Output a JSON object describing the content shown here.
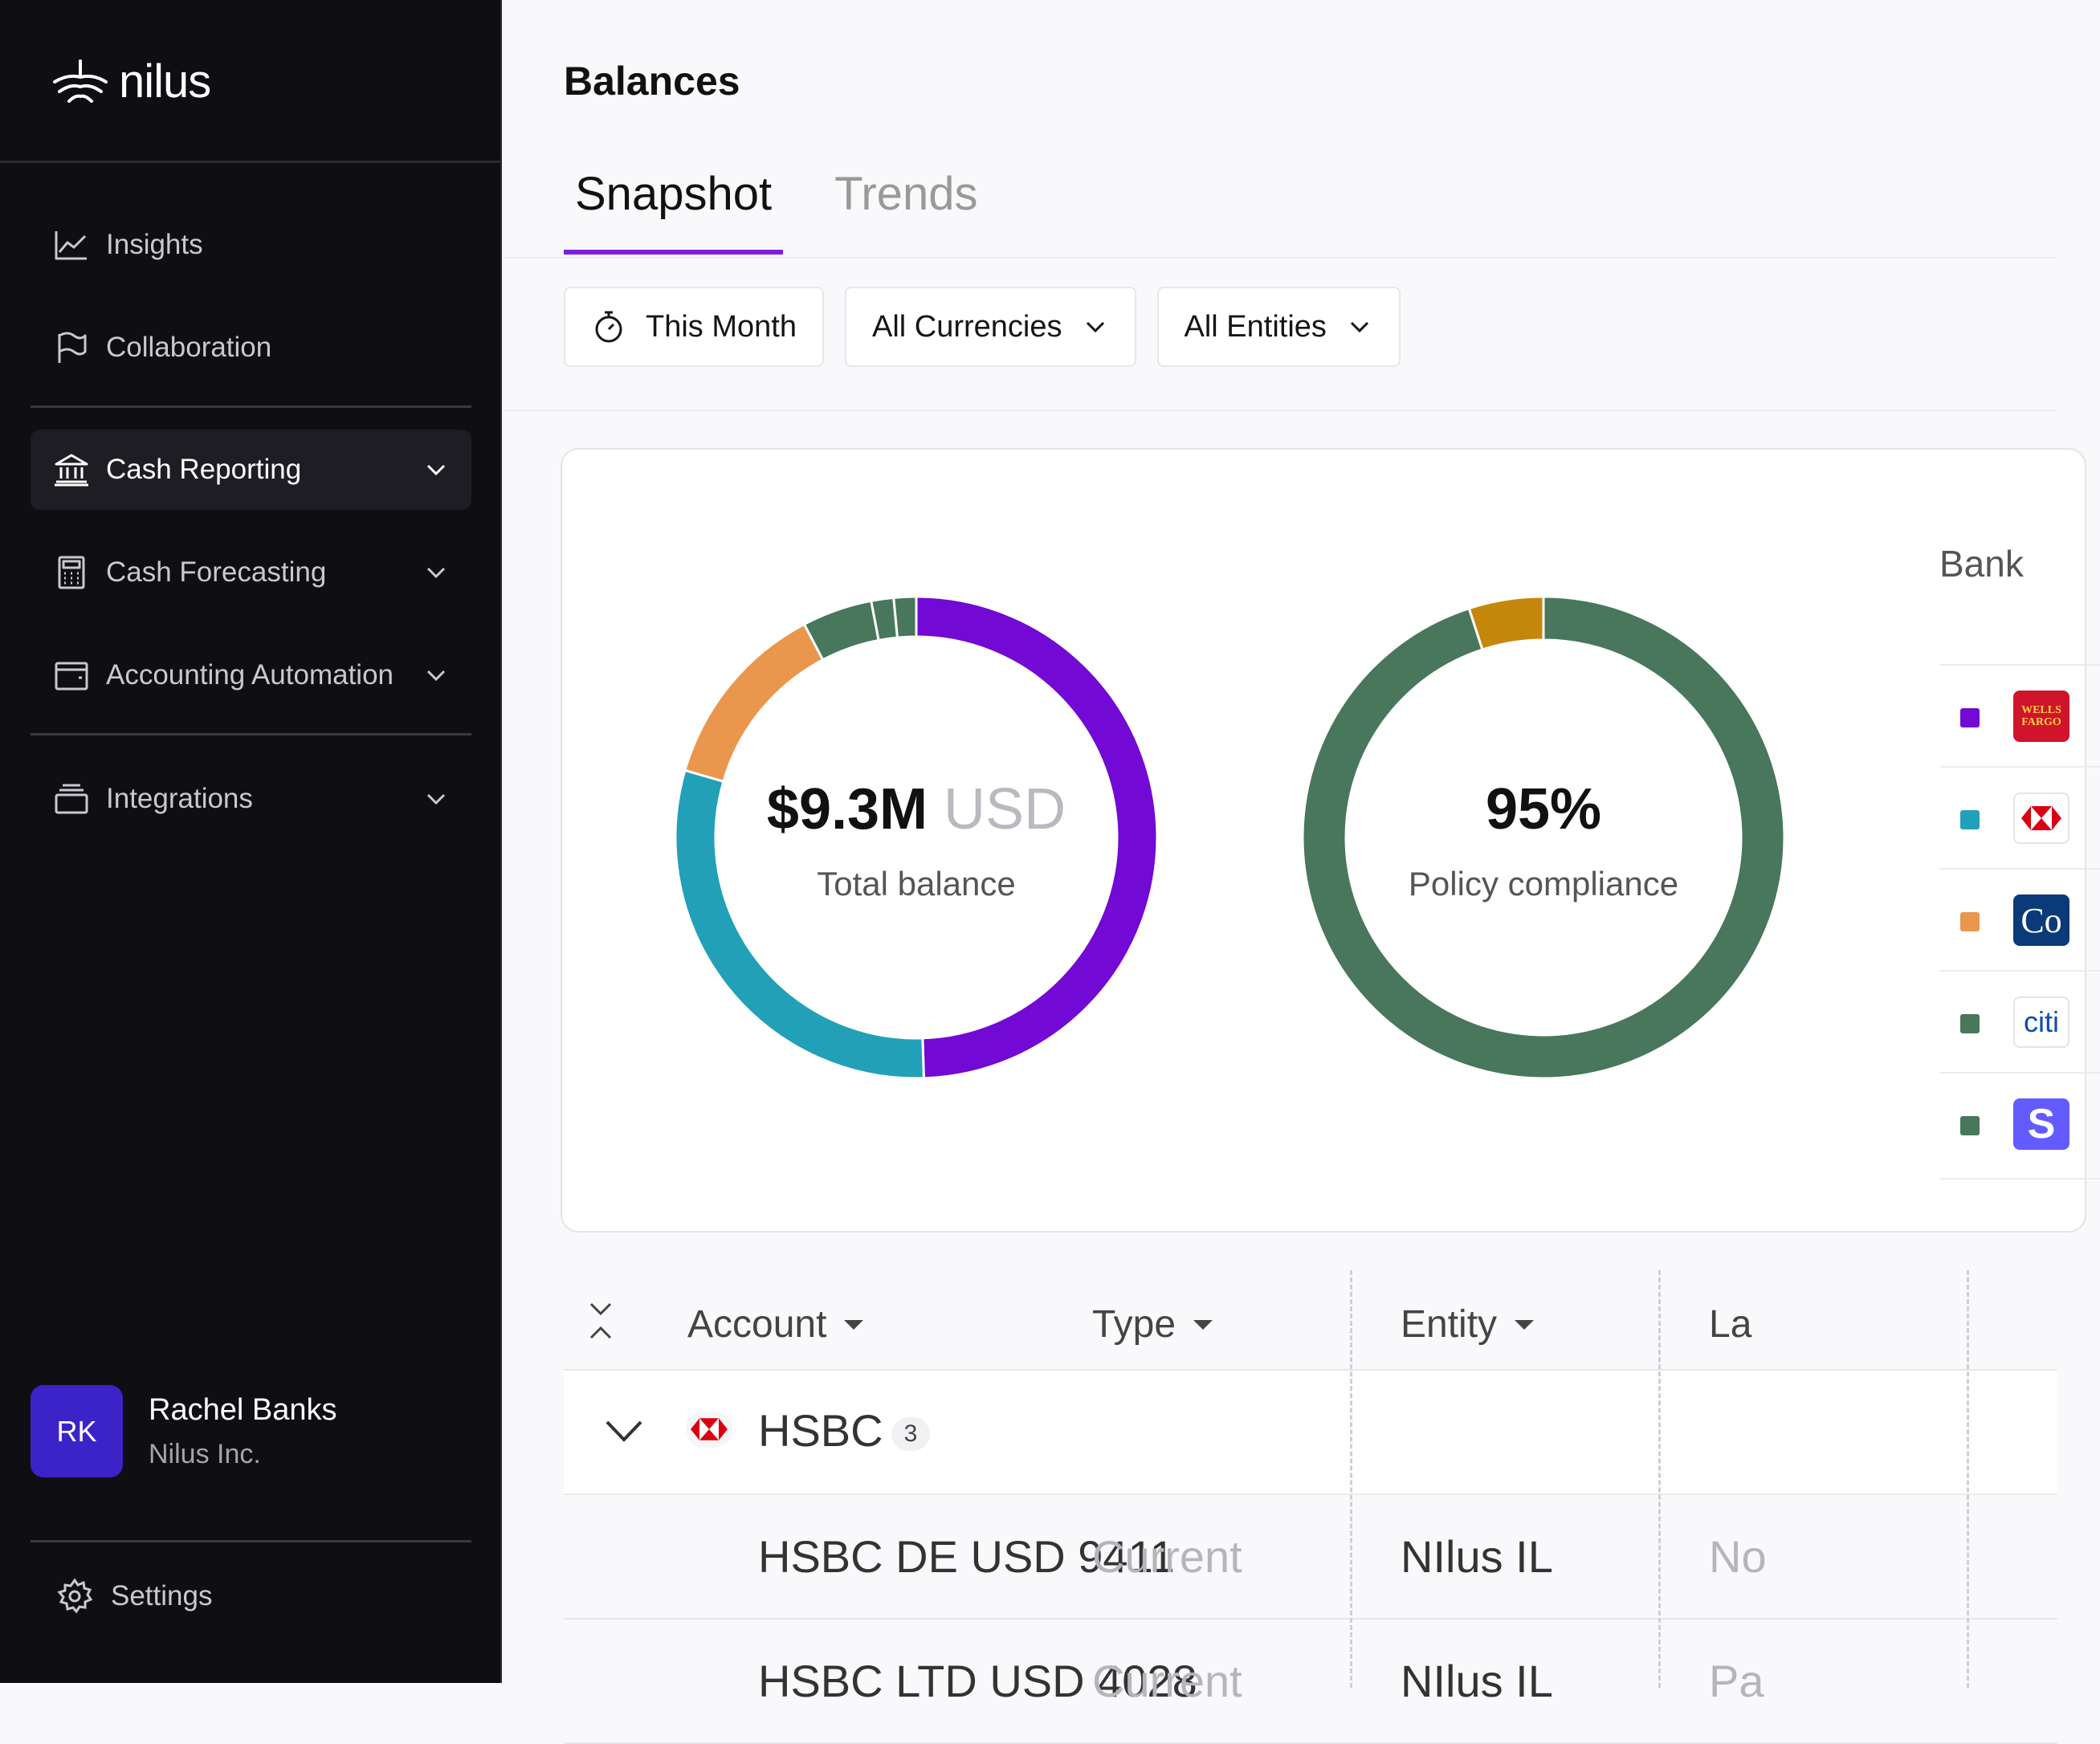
{
  "app": {
    "logo_text": "nilus"
  },
  "sidebar": {
    "items": [
      {
        "label": "Insights"
      },
      {
        "label": "Collaboration"
      },
      {
        "label": "Cash Reporting"
      },
      {
        "label": "Cash Forecasting"
      },
      {
        "label": "Accounting Automation"
      },
      {
        "label": "Integrations"
      }
    ],
    "user": {
      "initials": "RK",
      "name": "Rachel Banks",
      "org": "Nilus Inc."
    },
    "settings_label": "Settings"
  },
  "header": {
    "title": "Balances",
    "tabs": [
      {
        "label": "Snapshot"
      },
      {
        "label": "Trends"
      }
    ]
  },
  "filters": {
    "period": "This Month",
    "currency": "All Currencies",
    "entity": "All Entities"
  },
  "summary": {
    "total_balance": "$9.3M",
    "total_unit": "USD",
    "total_label": "Total balance",
    "compliance_value": "95%",
    "compliance_label": "Policy compliance"
  },
  "colors": {
    "accent": "#7d1fe0",
    "purple": "#7209d4",
    "teal": "#22a0b8",
    "orange": "#ea964c",
    "green": "#48775b",
    "gold": "#c5870b"
  },
  "balance_donut": {
    "segments": [
      {
        "color": "#7209d4",
        "percent": 49.5
      },
      {
        "color": "#22a0b8",
        "percent": 30.0
      },
      {
        "color": "#ea964c",
        "percent": 12.8
      },
      {
        "color": "#48775b",
        "percent": 4.7
      },
      {
        "color": "#48775b",
        "percent": 1.5
      },
      {
        "color": "#48775b",
        "percent": 1.5
      }
    ]
  },
  "compliance_donut": {
    "segments": [
      {
        "color": "#48775b",
        "percent": 95
      },
      {
        "color": "#c5870b",
        "percent": 5
      }
    ]
  },
  "legend": {
    "header": "Bank",
    "rows": [
      {
        "swatch": "#7209d4",
        "logo_text": "WELLS FARGO",
        "logo_icon": "wells-fargo-logo"
      },
      {
        "swatch": "#22a0b8",
        "logo_text": "",
        "logo_icon": "hsbc-logo"
      },
      {
        "swatch": "#ea964c",
        "logo_text": "Co",
        "logo_icon": "commerce-bank-logo"
      },
      {
        "swatch": "#48775b",
        "logo_text": "citi",
        "logo_icon": "citi-logo"
      },
      {
        "swatch": "#48775b",
        "logo_text": "S",
        "logo_icon": "stripe-logo"
      }
    ]
  },
  "table": {
    "columns": [
      "Account",
      "Type",
      "Entity",
      "La"
    ],
    "group": {
      "name": "HSBC",
      "count": "3"
    },
    "rows": [
      {
        "account": "HSBC DE USD 9411",
        "type": "Current",
        "entity": "NIlus IL",
        "label": "No"
      },
      {
        "account": "HSBC LTD USD 4028",
        "type": "Current",
        "entity": "NIlus IL",
        "label": "Pa"
      }
    ]
  }
}
